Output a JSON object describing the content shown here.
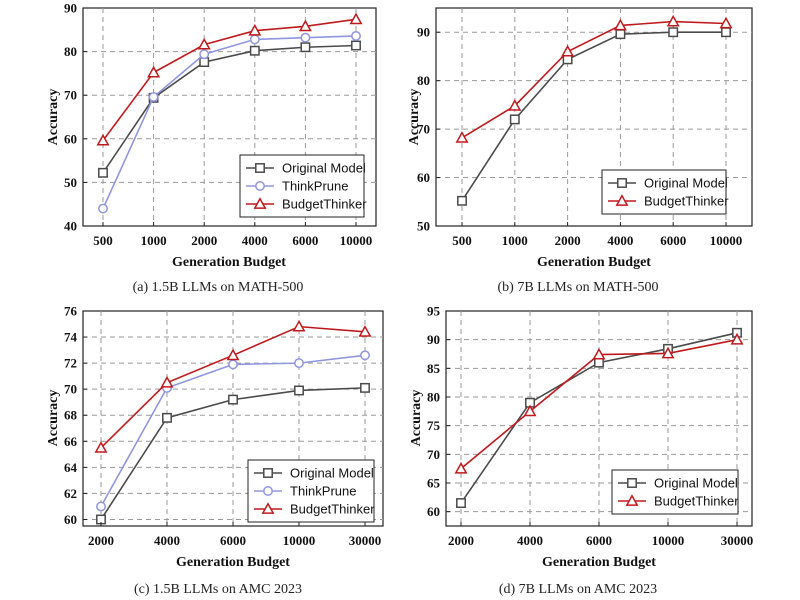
{
  "colors": {
    "original": "#4a4a4a",
    "thinkprune": "#8f96e0",
    "budgetthinker": "#c0191d",
    "grid": "#9a9a9a"
  },
  "chart_data": [
    {
      "id": "a",
      "type": "line",
      "caption": "(a) 1.5B LLMs on MATH-500",
      "xlabel": "Generation Budget",
      "ylabel": "Accuracy",
      "categories": [
        "500",
        "1000",
        "2000",
        "4000",
        "6000",
        "10000"
      ],
      "ylim": [
        40,
        90
      ],
      "yticks": [
        40,
        50,
        60,
        70,
        80,
        90
      ],
      "grid": true,
      "legend_position": "bottom-right",
      "series": [
        {
          "name": "Original Model",
          "marker": "square",
          "color": "original",
          "values": [
            52.2,
            69.4,
            77.6,
            80.2,
            81.0,
            81.4
          ]
        },
        {
          "name": "ThinkPrune",
          "marker": "circle",
          "color": "thinkprune",
          "values": [
            44.0,
            69.6,
            79.4,
            82.8,
            83.2,
            83.6
          ]
        },
        {
          "name": "BudgetThinker",
          "marker": "triangle",
          "color": "budgetthinker",
          "values": [
            59.6,
            75.2,
            81.6,
            84.8,
            85.8,
            87.4
          ]
        }
      ]
    },
    {
      "id": "b",
      "type": "line",
      "caption": "(b) 7B LLMs on MATH-500",
      "xlabel": "Generation Budget",
      "ylabel": "Accuracy",
      "categories": [
        "500",
        "1000",
        "2000",
        "4000",
        "6000",
        "10000"
      ],
      "ylim": [
        50,
        95
      ],
      "yticks": [
        50,
        60,
        70,
        80,
        90
      ],
      "grid": true,
      "legend_position": "bottom-right",
      "series": [
        {
          "name": "Original Model",
          "marker": "square",
          "color": "original",
          "values": [
            55.2,
            72.0,
            84.4,
            89.6,
            90.0,
            90.0
          ]
        },
        {
          "name": "BudgetThinker",
          "marker": "triangle",
          "color": "budgetthinker",
          "values": [
            68.2,
            74.8,
            86.0,
            91.4,
            92.2,
            91.8
          ]
        }
      ]
    },
    {
      "id": "c",
      "type": "line",
      "caption": "(c) 1.5B LLMs on AMC 2023",
      "xlabel": "Generation Budget",
      "ylabel": "Accuracy",
      "categories": [
        "2000",
        "4000",
        "6000",
        "10000",
        "30000"
      ],
      "ylim": [
        59.5,
        76
      ],
      "yticks": [
        60,
        62,
        64,
        66,
        68,
        70,
        72,
        74,
        76
      ],
      "grid": true,
      "legend_position": "bottom-right",
      "series": [
        {
          "name": "Original Model",
          "marker": "square",
          "color": "original",
          "values": [
            60.0,
            67.8,
            69.2,
            69.9,
            70.1
          ]
        },
        {
          "name": "ThinkPrune",
          "marker": "circle",
          "color": "thinkprune",
          "values": [
            61.0,
            70.1,
            71.9,
            72.0,
            72.6
          ]
        },
        {
          "name": "BudgetThinker",
          "marker": "triangle",
          "color": "budgetthinker",
          "values": [
            65.5,
            70.5,
            72.6,
            74.8,
            74.4
          ]
        }
      ]
    },
    {
      "id": "d",
      "type": "line",
      "caption": "(d) 7B LLMs on AMC 2023",
      "xlabel": "Generation Budget",
      "ylabel": "Accuracy",
      "categories": [
        "2000",
        "4000",
        "6000",
        "10000",
        "30000"
      ],
      "ylim": [
        57.5,
        95
      ],
      "yticks": [
        60,
        65,
        70,
        75,
        80,
        85,
        90,
        95
      ],
      "grid": true,
      "legend_position": "bottom-right",
      "series": [
        {
          "name": "Original Model",
          "marker": "square",
          "color": "original",
          "values": [
            61.5,
            79.0,
            86.0,
            88.4,
            91.2
          ]
        },
        {
          "name": "BudgetThinker",
          "marker": "triangle",
          "color": "budgetthinker",
          "values": [
            67.5,
            77.5,
            87.4,
            87.6,
            90.0
          ]
        }
      ]
    }
  ]
}
